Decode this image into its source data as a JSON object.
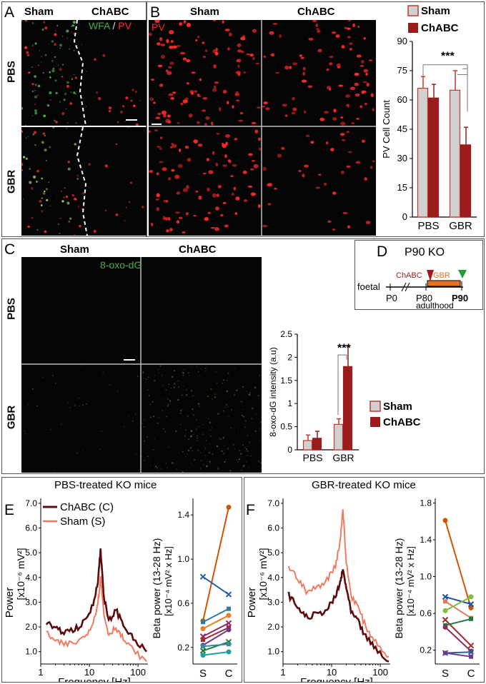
{
  "panelA": {
    "letter": "A",
    "col_labels": [
      "Sham",
      "ChABC"
    ],
    "stain_green": "WFA",
    "stain_sep": " / ",
    "stain_red": "PV",
    "row_labels": [
      "PBS",
      "GBR"
    ]
  },
  "panelB": {
    "letter": "B",
    "col_labels": [
      "Sham",
      "ChABC"
    ],
    "stain": "PV",
    "chart_data": {
      "type": "bar",
      "categories": [
        "PBS",
        "GBR"
      ],
      "series": [
        {
          "name": "Sham",
          "values": [
            66,
            65
          ],
          "errors": [
            6,
            10
          ]
        },
        {
          "name": "ChABC",
          "values": [
            61,
            37
          ],
          "errors": [
            7,
            9
          ]
        }
      ],
      "ylabel": "PV Cell Count",
      "ylim": [
        0,
        90
      ],
      "yticks": [
        0,
        15,
        30,
        45,
        60,
        75,
        90
      ],
      "significance": "***",
      "legend": "top"
    }
  },
  "panelC": {
    "letter": "C",
    "col_labels": [
      "Sham",
      "ChABC"
    ],
    "stain": "8-oxo-dG",
    "row_labels": [
      "PBS",
      "GBR"
    ],
    "chart_data": {
      "type": "bar",
      "categories": [
        "PBS",
        "GBR"
      ],
      "series": [
        {
          "name": "Sham",
          "values": [
            0.2,
            0.55
          ],
          "errors": [
            0.12,
            0.12
          ]
        },
        {
          "name": "ChABC",
          "values": [
            0.25,
            1.8
          ],
          "errors": [
            0.15,
            0.45
          ]
        }
      ],
      "ylabel": "8-oxo-dG intensity (a.u)",
      "ylim": [
        0,
        2.5
      ],
      "yticks": [
        0,
        0.5,
        1,
        1.5,
        2,
        2.5
      ],
      "significance": "***",
      "legend": "right"
    }
  },
  "panelD": {
    "letter": "D",
    "title": "P90 KO",
    "chabc": "ChABC",
    "gbr": "GBR",
    "foetal": "foetal",
    "p0": "P0",
    "p80": "P80",
    "p90": "P90",
    "adulthood": "adulthood"
  },
  "panelE": {
    "letter": "E",
    "title": "PBS-treated KO mice",
    "legend": [
      "ChABC (C)",
      "Sham (S)"
    ],
    "spectrum": {
      "type": "line",
      "xlabel": "Frequency [Hz]",
      "ylabel": "Power",
      "yunit": "[x10⁻⁶ mV²]",
      "xticks": [
        "1",
        "10",
        "100"
      ],
      "yticks": [
        1.0,
        2.0,
        3.0,
        4.0,
        5.0,
        6.0,
        7.0
      ],
      "ylim": [
        0.5,
        7.2
      ],
      "xscale": "log",
      "x": [
        1.3,
        2,
        3,
        5,
        8,
        12,
        15,
        17,
        20,
        25,
        35,
        50,
        80,
        150
      ],
      "series": [
        {
          "name": "ChABC (C)",
          "values": [
            2.2,
            1.9,
            1.8,
            1.9,
            2.2,
            2.9,
            3.9,
            5.1,
            3.2,
            2.2,
            2.7,
            2.1,
            1.5,
            1.0
          ]
        },
        {
          "name": "Sham (S)",
          "values": [
            1.8,
            1.4,
            1.3,
            1.35,
            1.6,
            2.2,
            3.0,
            4.0,
            2.5,
            1.7,
            2.0,
            1.5,
            1.05,
            0.6
          ]
        }
      ]
    },
    "beta": {
      "type": "line",
      "ylabel": "Beta power (13-28 Hz)",
      "yunit": "[x10⁻⁴ mV² x Hz]",
      "xticks": [
        "S",
        "C"
      ],
      "yticks": [
        0.2,
        0.6,
        1.0,
        1.4
      ],
      "ylim": [
        0.05,
        1.55
      ],
      "pairs": [
        [
          0.44,
          1.47
        ],
        [
          0.84,
          0.68
        ],
        [
          0.43,
          0.55
        ],
        [
          0.37,
          0.49
        ],
        [
          0.3,
          0.42
        ],
        [
          0.27,
          0.38
        ],
        [
          0.22,
          0.36
        ],
        [
          0.17,
          0.25
        ],
        [
          0.21,
          0.23
        ],
        [
          0.13,
          0.16
        ]
      ],
      "colors": [
        "#d35400",
        "#2c5e9e",
        "#2c7a9e",
        "#e67e22",
        "#8e2c5e",
        "#9e2c2c",
        "#6b3a8a",
        "#1f7a3a",
        "#3a8a9e",
        "#1e9e9e"
      ]
    }
  },
  "panelF": {
    "letter": "F",
    "title": "GBR-treated KO mice",
    "spectrum": {
      "type": "line",
      "xlabel": "Frequency [Hz]",
      "ylabel": "Power",
      "yunit": "[x10⁻⁶ mV²]",
      "xticks": [
        "1",
        "10",
        "100"
      ],
      "yticks": [
        1.0,
        2.0,
        3.0,
        4.0,
        5.0,
        6.0,
        7.0
      ],
      "ylim": [
        0.5,
        7.2
      ],
      "xscale": "log",
      "x": [
        1.3,
        2,
        3,
        5,
        8,
        12,
        15,
        17,
        20,
        25,
        35,
        50,
        80,
        150
      ],
      "series": [
        {
          "name": "ChABC (C)",
          "values": [
            3.3,
            2.8,
            2.4,
            2.5,
            2.7,
            3.2,
            3.8,
            4.3,
            3.6,
            2.6,
            2.2,
            1.6,
            1.1,
            0.6
          ]
        },
        {
          "name": "Sham (S)",
          "values": [
            4.4,
            4.0,
            3.4,
            3.6,
            3.9,
            4.5,
            5.5,
            6.8,
            4.6,
            3.3,
            2.8,
            2.0,
            1.4,
            0.8
          ]
        }
      ]
    },
    "beta": {
      "type": "line",
      "ylabel": "Beta power (13-28 Hz)",
      "yunit": "[x10⁻⁴ mV² x Hz]",
      "xticks": [
        "S",
        "C"
      ],
      "yticks": [
        0.2,
        0.6,
        1.0,
        1.4,
        1.8
      ],
      "ylim": [
        0.05,
        1.85
      ],
      "pairs": [
        [
          1.61,
          0.66
        ],
        [
          0.78,
          0.7
        ],
        [
          0.73,
          0.55
        ],
        [
          0.63,
          0.78
        ],
        [
          0.53,
          0.25
        ],
        [
          0.47,
          0.54
        ],
        [
          0.45,
          0.19
        ],
        [
          0.17,
          0.18
        ],
        [
          0.17,
          0.13
        ]
      ],
      "colors": [
        "#d35400",
        "#1f4e9e",
        "#e07a5f",
        "#7fbf3f",
        "#9e2c2c",
        "#1f7a3a",
        "#8e2c5e",
        "#2c5e9e",
        "#6b3a8a"
      ]
    }
  },
  "colors": {
    "sham_fill": "#d0d0d0",
    "sham_edge": "#c0392b",
    "chabc_fill": "#9b1c1c",
    "trace_dark": "#5c0a0a",
    "trace_light": "#f07a5f",
    "pv_red": "#ff2a2a",
    "wfa_green": "#4caf50"
  }
}
